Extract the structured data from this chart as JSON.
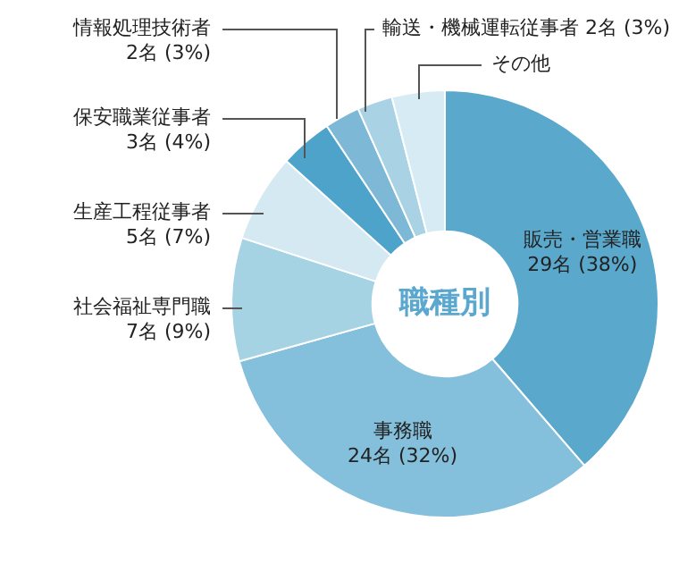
{
  "chart_data": {
    "type": "donut",
    "title": "職種別",
    "categories": [
      "販売・営業職",
      "事務職",
      "社会福祉専門職",
      "生産工程従事者",
      "保安職業従事者",
      "情報処理技術者",
      "輸送・機械運転従事者",
      "その他"
    ],
    "values": [
      29,
      24,
      7,
      5,
      3,
      2,
      2,
      3
    ],
    "value_labels": [
      "29名 (38%)",
      "24名 (32%)",
      "7名 (9%)",
      "5名 (7%)",
      "3名 (4%)",
      "2名 (3%)",
      "2名 (3%)",
      null
    ],
    "colors": [
      "#5aa8cc",
      "#84bfdb",
      "#a6d3e4",
      "#d4e9f2",
      "#4ea3cb",
      "#7db9d6",
      "#a9d3e5",
      "#d6ebf4"
    ]
  }
}
